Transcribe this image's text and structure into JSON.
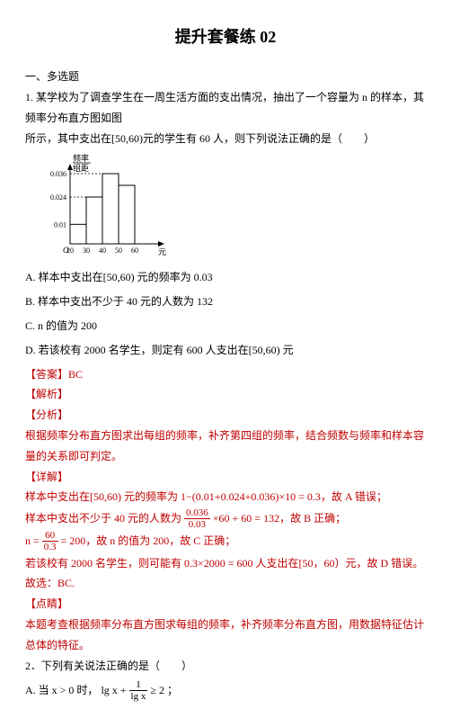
{
  "title": "提升套餐练 02",
  "section_heading": "一、多选题",
  "q1": {
    "stem_a": "1. 某学校为了调查学生在一周生活方面的支出情况，抽出了一个容量为 n 的样本，其频率分布直方图如图",
    "stem_b": "所示，其中支出在",
    "interval": "[50,60)",
    "stem_c": "元的学生有 60 人，则下列说法正确的是（　　）",
    "A": "A.  样本中支出在",
    "A_interval": "[50,60)",
    "A_tail": " 元的频率为 0.03",
    "B": "B.  样本中支出不少于 40 元的人数为 132",
    "C": "C.  n 的值为 200",
    "D": "D.  若该校有 2000 名学生，则定有 600 人支出在",
    "D_interval": "[50,60)",
    "D_tail": " 元"
  },
  "ans": {
    "answer_label": "【答案】",
    "answer": "BC",
    "jiexi": "【解析】",
    "fenxi": "【分析】",
    "fenxi_text": "根据频率分布直方图求出每组的频率，补齐第四组的频率，结合频数与频率和样本容量的关系即可判定。",
    "xiangjie": "【详解】",
    "line1_a": "样本中支出在",
    "line1_interval": "[50,60)",
    "line1_b": " 元的频率为",
    "line1_expr": "1−(0.01+0.024+0.036)×10 = 0.3",
    "line1_c": "，故 A 错误；",
    "line2_a": "样本中支出不少于 40 元的人数为",
    "line2_frac_num": "0.036",
    "line2_frac_den": "0.03",
    "line2_b": "×60 + 60 = 132",
    "line2_c": "，故 B 正确；",
    "line3_prefix": "n =",
    "line3_frac_num": "60",
    "line3_frac_den": "0.3",
    "line3_a": "= 200，故 n 的值为 200，故 C 正确；",
    "line4": "若该校有 2000 名学生，则可能有 0.3×2000 = 600 人支出在[50，60）元，故 D 错误。",
    "line5": "故选：BC.",
    "dianjing": "【点睛】",
    "dianjing_text": "本题考查根据频率分布直方图求每组的频率，补齐频率分布直方图，用数据特征估计总体的特征。"
  },
  "q2": {
    "stem": "2．下列有关说法正确的是（　　）",
    "A_prefix": "A.  当 x > 0 时，",
    "A_lhs_top": "1",
    "A_lhs_bot": "lg x",
    "A_lhs_lead": "lg x + ",
    "A_tail": " ≥ 2 ；"
  },
  "chart": {
    "y_axis_label_top": "频率",
    "y_axis_label_bot": "组距",
    "x_axis_label": "元",
    "y_ticks": [
      "0.036",
      "0.024",
      "0.01"
    ],
    "x_ticks": [
      "20",
      "30",
      "40",
      "50",
      "60"
    ],
    "bars": [
      {
        "x": 20,
        "h": 0.01
      },
      {
        "x": 30,
        "h": 0.024
      },
      {
        "x": 40,
        "h": 0.036
      }
    ],
    "colors": {
      "axis": "#000",
      "bar_fill": "#ffffff",
      "bar_stroke": "#000",
      "dash": "#000"
    },
    "width": 150,
    "height": 120
  }
}
